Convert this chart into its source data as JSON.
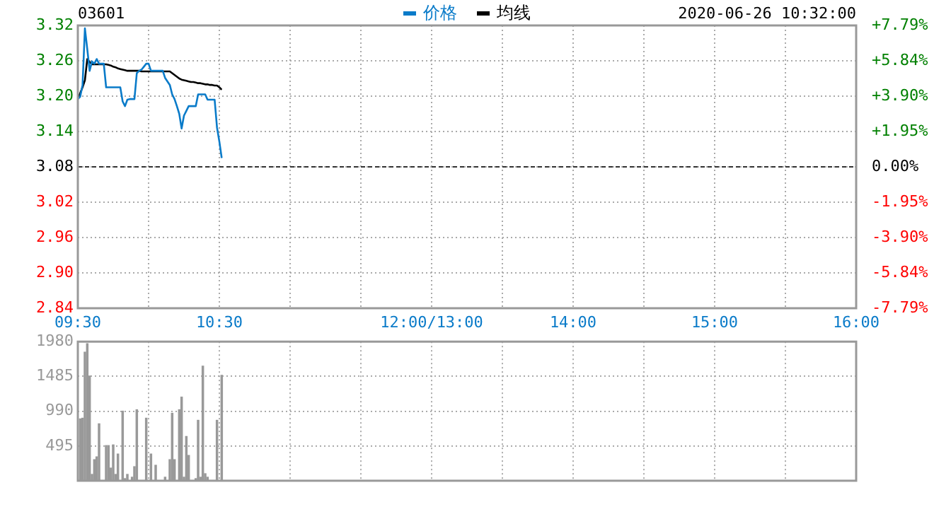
{
  "chart_data": [
    {
      "type": "line",
      "title": "03601",
      "annotations": [
        "2020-06-26 10:32:00"
      ],
      "legend": "top",
      "grid": true,
      "marker": "none",
      "categories": [
        "09:30",
        null,
        null,
        null,
        null,
        null,
        null,
        null,
        null,
        null,
        null,
        null,
        null,
        null,
        null,
        null,
        null,
        null,
        null,
        null,
        null,
        null,
        null,
        null,
        null,
        null,
        null,
        null,
        null,
        null,
        null,
        null,
        null,
        null,
        null,
        null,
        null,
        null,
        null,
        null,
        null,
        null,
        null,
        null,
        null,
        null,
        null,
        null,
        null,
        null,
        null,
        null,
        null,
        null,
        null,
        null,
        null,
        null,
        null,
        null,
        "10:30",
        null,
        null,
        null,
        null,
        null,
        null,
        null,
        null,
        null,
        null,
        null,
        null,
        null,
        null,
        null,
        null,
        null,
        null,
        null,
        null,
        null,
        null,
        null,
        null,
        null,
        null,
        null,
        null,
        null,
        null,
        null,
        null,
        null,
        null,
        null,
        null,
        null,
        null,
        null,
        null,
        null,
        null,
        null,
        null,
        null,
        null,
        null,
        null,
        null,
        null,
        null,
        null,
        null,
        null,
        null,
        null,
        null,
        null,
        null,
        null,
        null,
        null,
        null,
        null,
        null,
        null,
        null,
        null,
        null,
        null,
        null,
        null,
        null,
        null,
        null,
        null,
        null,
        null,
        null,
        null,
        null,
        null,
        null,
        null,
        null,
        null,
        null,
        null,
        null,
        "12:00/13:00",
        null,
        null,
        null,
        null,
        null,
        null,
        null,
        null,
        null,
        null,
        null,
        null,
        null,
        null,
        null,
        null,
        null,
        null,
        null,
        null,
        null,
        null,
        null,
        null,
        null,
        null,
        null,
        null,
        null,
        null,
        null,
        null,
        null,
        null,
        null,
        null,
        null,
        null,
        null,
        null,
        null,
        null,
        null,
        null,
        null,
        null,
        null,
        null,
        null,
        null,
        null,
        null,
        null,
        null,
        null,
        null,
        null,
        null,
        null,
        "14:00",
        null,
        null,
        null,
        null,
        null,
        null,
        null,
        null,
        null,
        null,
        null,
        null,
        null,
        null,
        null,
        null,
        null,
        null,
        null,
        null,
        null,
        null,
        null,
        null,
        null,
        null,
        null,
        null,
        null,
        null,
        null,
        null,
        null,
        null,
        null,
        null,
        null,
        null,
        null,
        null,
        null,
        null,
        null,
        null,
        null,
        null,
        null,
        null,
        null,
        null,
        null,
        null,
        null,
        null,
        null,
        null,
        null,
        null,
        null,
        "15:00",
        null,
        null,
        null,
        null,
        null,
        null,
        null,
        null,
        null,
        null,
        null,
        null,
        null,
        null,
        null,
        null,
        null,
        null,
        null,
        null,
        null,
        null,
        null,
        null,
        null,
        null,
        null,
        null,
        null,
        null,
        null,
        null,
        null,
        null,
        null,
        null,
        null,
        null,
        null,
        null,
        null,
        null,
        null,
        null,
        null,
        null,
        null,
        null,
        null,
        null,
        null,
        null,
        null,
        null,
        null,
        null,
        null,
        null,
        null,
        "16:00"
      ],
      "series": [
        {
          "name": "价格",
          "color": "#0a7bc9",
          "values": [
            3.195,
            3.199,
            3.219,
            3.315,
            3.28,
            3.243,
            3.259,
            3.255,
            3.263,
            3.255,
            3.255,
            3.255,
            3.215,
            3.215,
            3.215,
            3.215,
            3.215,
            3.215,
            3.215,
            3.191,
            3.183,
            3.194,
            3.195,
            3.195,
            3.195,
            3.239,
            3.243,
            3.245,
            3.25,
            3.255,
            3.255,
            3.243,
            3.243,
            3.243,
            3.243,
            3.243,
            3.243,
            3.231,
            3.225,
            3.219,
            3.203,
            3.195,
            3.183,
            3.17,
            3.145,
            3.167,
            3.175,
            3.183,
            3.183,
            3.183,
            3.183,
            3.203,
            3.203,
            3.203,
            3.203,
            3.194,
            3.194,
            3.194,
            3.194,
            3.147,
            3.123,
            3.095,
            null,
            null,
            null,
            null,
            null,
            null,
            null,
            null,
            null,
            null,
            null,
            null,
            null,
            null,
            null,
            null,
            null,
            null,
            null,
            null,
            null,
            null,
            null,
            null,
            null,
            null,
            null,
            null,
            null,
            null,
            null,
            null,
            null,
            null,
            null,
            null,
            null,
            null,
            null,
            null,
            null,
            null,
            null,
            null,
            null,
            null,
            null,
            null,
            null,
            null,
            null,
            null,
            null,
            null,
            null,
            null,
            null,
            null,
            null,
            null,
            null,
            null,
            null,
            null,
            null,
            null,
            null,
            null,
            null,
            null,
            null,
            null,
            null,
            null,
            null,
            null,
            null,
            null,
            null,
            null,
            null,
            null,
            null,
            null,
            null,
            null,
            null,
            null,
            null,
            null,
            null,
            null,
            null,
            null,
            null,
            null,
            null,
            null,
            null,
            null,
            null,
            null,
            null,
            null,
            null,
            null,
            null,
            null,
            null,
            null,
            null,
            null,
            null,
            null,
            null,
            null,
            null,
            null,
            null,
            null,
            null,
            null,
            null,
            null,
            null,
            null,
            null,
            null,
            null,
            null,
            null,
            null,
            null,
            null,
            null,
            null,
            null,
            null,
            null,
            null,
            null,
            null,
            null,
            null,
            null,
            null,
            null,
            null,
            null,
            null,
            null,
            null,
            null,
            null,
            null,
            null,
            null,
            null,
            null,
            null,
            null,
            null,
            null,
            null,
            null,
            null,
            null,
            null,
            null,
            null,
            null,
            null,
            null,
            null,
            null,
            null,
            null,
            null,
            null,
            null,
            null,
            null,
            null,
            null,
            null,
            null,
            null,
            null,
            null,
            null,
            null,
            null,
            null,
            null,
            null,
            null,
            null,
            null,
            null,
            null,
            null,
            null,
            null,
            null,
            null,
            null,
            null,
            null,
            null,
            null,
            null,
            null,
            null,
            null,
            null,
            null,
            null,
            null,
            null,
            null,
            null,
            null,
            null,
            null,
            null,
            null,
            null,
            null,
            null,
            null,
            null,
            null,
            null,
            null,
            null,
            null,
            null,
            null,
            null,
            null,
            null,
            null,
            null,
            null,
            null,
            null,
            null,
            null,
            null,
            null,
            null,
            null,
            null,
            null,
            null,
            null,
            null,
            null,
            null,
            null,
            null,
            null,
            null,
            null,
            null,
            null,
            null,
            null,
            null
          ]
        },
        {
          "name": "均线",
          "color": "#000000",
          "values": [
            3.196,
            3.205,
            3.215,
            3.227,
            3.263,
            3.258,
            3.254,
            3.254,
            3.254,
            3.254,
            3.254,
            3.254,
            3.254,
            3.253,
            3.252,
            3.25,
            3.249,
            3.247,
            3.246,
            3.245,
            3.244,
            3.243,
            3.243,
            3.243,
            3.243,
            3.243,
            3.243,
            3.242,
            3.242,
            3.242,
            3.242,
            3.242,
            3.242,
            3.242,
            3.242,
            3.242,
            3.242,
            3.242,
            3.242,
            3.242,
            3.239,
            3.236,
            3.233,
            3.23,
            3.228,
            3.227,
            3.226,
            3.225,
            3.224,
            3.224,
            3.223,
            3.222,
            3.222,
            3.221,
            3.22,
            3.22,
            3.219,
            3.219,
            3.218,
            3.218,
            3.215,
            3.211,
            null,
            null,
            null,
            null,
            null,
            null,
            null,
            null,
            null,
            null,
            null,
            null,
            null,
            null,
            null,
            null,
            null,
            null,
            null,
            null,
            null,
            null,
            null,
            null,
            null,
            null,
            null,
            null,
            null,
            null,
            null,
            null,
            null,
            null,
            null,
            null,
            null,
            null,
            null,
            null,
            null,
            null,
            null,
            null,
            null,
            null,
            null,
            null,
            null,
            null,
            null,
            null,
            null,
            null,
            null,
            null,
            null,
            null,
            null,
            null,
            null,
            null,
            null,
            null,
            null,
            null,
            null,
            null,
            null,
            null,
            null,
            null,
            null,
            null,
            null,
            null,
            null,
            null,
            null,
            null,
            null,
            null,
            null,
            null,
            null,
            null,
            null,
            null,
            null,
            null,
            null,
            null,
            null,
            null,
            null,
            null,
            null,
            null,
            null,
            null,
            null,
            null,
            null,
            null,
            null,
            null,
            null,
            null,
            null,
            null,
            null,
            null,
            null,
            null,
            null,
            null,
            null,
            null,
            null,
            null,
            null,
            null,
            null,
            null,
            null,
            null,
            null,
            null,
            null,
            null,
            null,
            null,
            null,
            null,
            null,
            null,
            null,
            null,
            null,
            null,
            null,
            null,
            null,
            null,
            null,
            null,
            null,
            null,
            null,
            null,
            null,
            null,
            null,
            null,
            null,
            null,
            null,
            null,
            null,
            null,
            null,
            null,
            null,
            null,
            null,
            null,
            null,
            null,
            null,
            null,
            null,
            null,
            null,
            null,
            null,
            null,
            null,
            null,
            null,
            null,
            null,
            null,
            null,
            null,
            null,
            null,
            null,
            null,
            null,
            null,
            null,
            null,
            null,
            null,
            null,
            null,
            null,
            null,
            null,
            null,
            null,
            null,
            null,
            null,
            null,
            null,
            null,
            null,
            null,
            null,
            null,
            null,
            null,
            null,
            null,
            null,
            null,
            null,
            null,
            null,
            null,
            null,
            null,
            null,
            null,
            null,
            null,
            null,
            null,
            null,
            null,
            null,
            null,
            null,
            null,
            null,
            null,
            null,
            null,
            null,
            null,
            null,
            null,
            null,
            null,
            null,
            null,
            null,
            null,
            null,
            null,
            null,
            null,
            null,
            null,
            null,
            null,
            null,
            null,
            null,
            null,
            null,
            null,
            null,
            null,
            null,
            null,
            null,
            null
          ]
        }
      ],
      "ylim": [
        2.84,
        3.32
      ],
      "yticks": [
        2.84,
        {
          "value": 2.9,
          "label": "2.90"
        },
        2.96,
        3.02,
        3.08,
        3.14,
        {
          "value": 3.2,
          "label": "3.20"
        },
        3.26,
        3.32
      ],
      "y2lim": [
        -7.79,
        7.79
      ],
      "y2ticks": [
        {
          "value": -7.79,
          "label": "-7.79%"
        },
        {
          "value": -5.84,
          "label": "-5.84%"
        },
        {
          "value": -3.9,
          "label": "-3.90%"
        },
        {
          "value": -1.95,
          "label": "-1.95%"
        },
        {
          "value": 0,
          "label": "0.00%"
        },
        {
          "value": 1.95,
          "label": "+1.95%"
        },
        {
          "value": 3.9,
          "label": "+3.90%"
        },
        {
          "value": 5.84,
          "label": "+5.84%"
        },
        {
          "value": 7.79,
          "label": "+7.79%"
        }
      ],
      "ref_lines": [
        {
          "axis": "y",
          "value": 3.08,
          "color": "#333333",
          "line_style": "dashed"
        }
      ]
    },
    {
      "type": "bar",
      "color": "#999999",
      "grid": true,
      "tick_labels": "y",
      "categories": [
        null,
        null,
        null,
        null,
        null,
        null,
        null,
        null,
        null,
        null,
        null,
        null,
        null,
        null,
        null,
        null,
        null,
        null,
        null,
        null,
        null,
        null,
        null,
        null,
        null,
        null,
        null,
        null,
        null,
        null,
        null,
        null,
        null,
        null,
        null,
        null,
        null,
        null,
        null,
        null,
        null,
        null,
        null,
        null,
        null,
        null,
        null,
        null,
        null,
        null,
        null,
        null,
        null,
        null,
        null,
        null,
        null,
        null,
        null,
        null,
        null,
        null,
        null,
        null,
        null,
        null,
        null,
        null,
        null,
        null,
        null,
        null,
        null,
        null,
        null,
        null,
        null,
        null,
        null,
        null,
        null,
        null,
        null,
        null,
        null,
        null,
        null,
        null,
        null,
        null,
        null,
        null,
        null,
        null,
        null,
        null,
        null,
        null,
        null,
        null,
        null,
        null,
        null,
        null,
        null,
        null,
        null,
        null,
        null,
        null,
        null,
        null,
        null,
        null,
        null,
        null,
        null,
        null,
        null,
        null,
        null,
        null,
        null,
        null,
        null,
        null,
        null,
        null,
        null,
        null,
        null,
        null,
        null,
        null,
        null,
        null,
        null,
        null,
        null,
        null,
        null,
        null,
        null,
        null,
        null,
        null,
        null,
        null,
        null,
        null,
        null,
        null,
        null,
        null,
        null,
        null,
        null,
        null,
        null,
        null,
        null,
        null,
        null,
        null,
        null,
        null,
        null,
        null,
        null,
        null,
        null,
        null,
        null,
        null,
        null,
        null,
        null,
        null,
        null,
        null,
        null,
        null,
        null,
        null,
        null,
        null,
        null,
        null,
        null,
        null,
        null,
        null,
        null,
        null,
        null,
        null,
        null,
        null,
        null,
        null,
        null,
        null,
        null,
        null,
        null,
        null,
        null,
        null,
        null,
        null,
        null,
        null,
        null,
        null,
        null,
        null,
        null,
        null,
        null,
        null,
        null,
        null,
        null,
        null,
        null,
        null,
        null,
        null,
        null,
        null,
        null,
        null,
        null,
        null,
        null,
        null,
        null,
        null,
        null,
        null,
        null,
        null,
        null,
        null,
        null,
        null,
        null,
        null,
        null,
        null,
        null,
        null,
        null,
        null,
        null,
        null,
        null,
        null,
        null,
        null,
        null,
        null,
        null,
        null,
        null,
        null,
        null,
        null,
        null,
        null,
        null,
        null,
        null,
        null,
        null,
        null,
        null,
        null,
        null,
        null,
        null,
        null,
        null,
        null,
        null,
        null,
        null,
        null,
        null,
        null,
        null,
        null,
        null,
        null,
        null,
        null,
        null,
        null,
        null,
        null,
        null,
        null,
        null,
        null,
        null,
        null,
        null,
        null,
        null,
        null,
        null,
        null,
        null,
        null,
        null,
        null,
        null,
        null,
        null,
        null,
        null,
        null,
        null,
        null,
        null,
        null,
        null,
        null,
        null,
        null,
        null
      ],
      "values": [
        null,
        880,
        890,
        1830,
        1950,
        1490,
        90,
        300,
        340,
        810,
        null,
        null,
        500,
        500,
        180,
        510,
        90,
        380,
        null,
        990,
        30,
        90,
        null,
        50,
        200,
        1010,
        null,
        null,
        null,
        890,
        null,
        380,
        null,
        220,
        null,
        null,
        null,
        50,
        null,
        300,
        960,
        300,
        null,
        1010,
        1190,
        50,
        630,
        360,
        null,
        null,
        30,
        860,
        50,
        1630,
        100,
        50,
        null,
        null,
        null,
        860,
        null,
        1500,
        null,
        null,
        null,
        null,
        null,
        null,
        null,
        null,
        null,
        null,
        null,
        null,
        null,
        null,
        null,
        null,
        null,
        null,
        null,
        null,
        null,
        null,
        null,
        null,
        null,
        null,
        null,
        null,
        null,
        null,
        null,
        null,
        null,
        null,
        null,
        null,
        null,
        null,
        null,
        null,
        null,
        null,
        null,
        null,
        null,
        null,
        null,
        null,
        null,
        null,
        null,
        null,
        null,
        null,
        null,
        null,
        null,
        null,
        null,
        null,
        null,
        null,
        null,
        null,
        null,
        null,
        null,
        null,
        null,
        null,
        null,
        null,
        null,
        null,
        null,
        null,
        null,
        null,
        null,
        null,
        null,
        null,
        null,
        null,
        null,
        null,
        null,
        null,
        null,
        null,
        null,
        null,
        null,
        null,
        null,
        null,
        null,
        null,
        null,
        null,
        null,
        null,
        null,
        null,
        null,
        null,
        null,
        null,
        null,
        null,
        null,
        null,
        null,
        null,
        null,
        null,
        null,
        null,
        null,
        null,
        null,
        null,
        null,
        null,
        null,
        null,
        null,
        null,
        null,
        null,
        null,
        null,
        null,
        null,
        null,
        null,
        null,
        null,
        null,
        null,
        null,
        null,
        null,
        null,
        null,
        null,
        null,
        null,
        null,
        null,
        null,
        null,
        null,
        null,
        null,
        null,
        null,
        null,
        null,
        null,
        null,
        null,
        null,
        null,
        null,
        null,
        null,
        null,
        null,
        null,
        null,
        null,
        null,
        null,
        null,
        null,
        null,
        null,
        null,
        null,
        null,
        null,
        null,
        null,
        null,
        null,
        null,
        null,
        null,
        null,
        null,
        null,
        null,
        null,
        null,
        null,
        null,
        null,
        null,
        null,
        null,
        null,
        null,
        null,
        null,
        null,
        null,
        null,
        null,
        null,
        null,
        null,
        null,
        null,
        null,
        null,
        null,
        null,
        null,
        null,
        null,
        null,
        null,
        null,
        null,
        null,
        null,
        null,
        null,
        null,
        null,
        null,
        null,
        null,
        null,
        null,
        null,
        null,
        null,
        null,
        null,
        null,
        null,
        null,
        null,
        null,
        null,
        null,
        null,
        null,
        null,
        null,
        null,
        null,
        null,
        null,
        null,
        null,
        null,
        null,
        null,
        null,
        null,
        null,
        null,
        null,
        null,
        null,
        null
      ],
      "ylim": [
        0,
        1980
      ],
      "yticks": [
        495,
        990,
        1485,
        1980
      ]
    }
  ]
}
